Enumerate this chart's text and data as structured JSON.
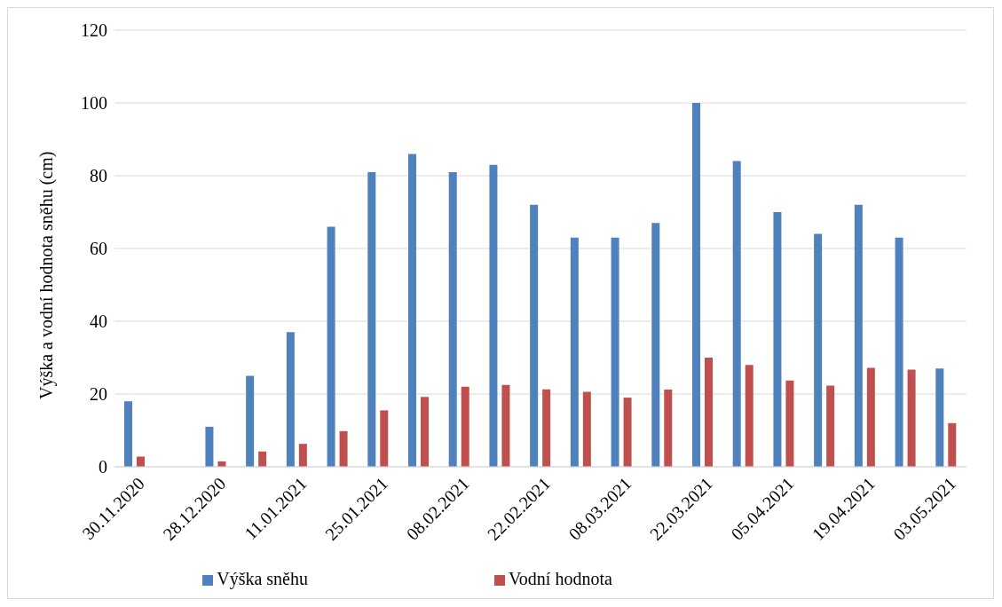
{
  "chart_data": {
    "type": "bar",
    "ylabel": "Výška a vodní hodnota sněhu (cm)",
    "categories": [
      "30.11.2020",
      null,
      "28.12.2020",
      null,
      "11.01.2021",
      null,
      "25.01.2021",
      null,
      "08.02.2021",
      null,
      "22.02.2021",
      null,
      "08.03.2021",
      null,
      "22.03.2021",
      null,
      "05.04.2021",
      null,
      "19.04.2021",
      null,
      "03.05.2021"
    ],
    "series": [
      {
        "name": "Výška sněhu",
        "color": "#4f81bd",
        "values": [
          18,
          null,
          11,
          25,
          37,
          66,
          81,
          86,
          81,
          83,
          72,
          63,
          63,
          67,
          100,
          84,
          70,
          64,
          72,
          63,
          27
        ]
      },
      {
        "name": "Vodní hodnota",
        "color": "#c0504d",
        "values": [
          2.8,
          null,
          1.5,
          4.2,
          6.3,
          9.8,
          15.5,
          19.2,
          22,
          22.5,
          21.3,
          20.6,
          19,
          21.2,
          30,
          28,
          23.7,
          22.3,
          27.2,
          26.7,
          12
        ]
      }
    ],
    "ylim": [
      0,
      120
    ],
    "yticks": [
      0,
      20,
      40,
      60,
      80,
      100,
      120
    ],
    "grid": "y",
    "legend": "bottom"
  }
}
